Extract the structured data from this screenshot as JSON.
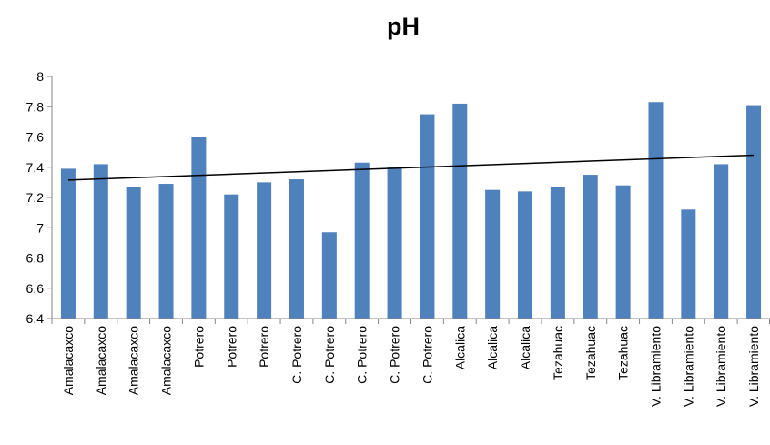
{
  "chart_data": {
    "type": "bar",
    "title": "pH",
    "xlabel": "",
    "ylabel": "",
    "ylim": [
      6.4,
      8
    ],
    "yticks": [
      "6.4",
      "6.6",
      "6.8",
      "7",
      "7.2",
      "7.4",
      "7.6",
      "7.8",
      "8"
    ],
    "categories": [
      "Amalacaxco",
      "Amalacaxco",
      "Amalacaxco",
      "Amalacaxco",
      "Potrero",
      "Potrero",
      "Potrero",
      "C. Potrero",
      "C. Potrero",
      "C. Potrero",
      "C. Potrero",
      "C. Potrero",
      "Alcalica",
      "Alcalica",
      "Alcalica",
      "Tezahuac",
      "Tezahuac",
      "Tezahuac",
      "V. Libramiento",
      "V. Libramiento",
      "V. Libramiento",
      "V. Libramiento"
    ],
    "values": [
      7.39,
      7.42,
      7.27,
      7.29,
      7.6,
      7.22,
      7.3,
      7.32,
      6.97,
      7.43,
      7.4,
      7.75,
      7.82,
      7.25,
      7.24,
      7.27,
      7.35,
      7.28,
      7.83,
      7.12,
      7.42,
      7.81
    ],
    "trendline": {
      "type": "linear",
      "start": 7.315,
      "end": 7.48
    },
    "grid": false,
    "legend": "none",
    "colors": {
      "bar": "#4F81BD",
      "trend": "#000000",
      "axis": "#868686"
    }
  }
}
